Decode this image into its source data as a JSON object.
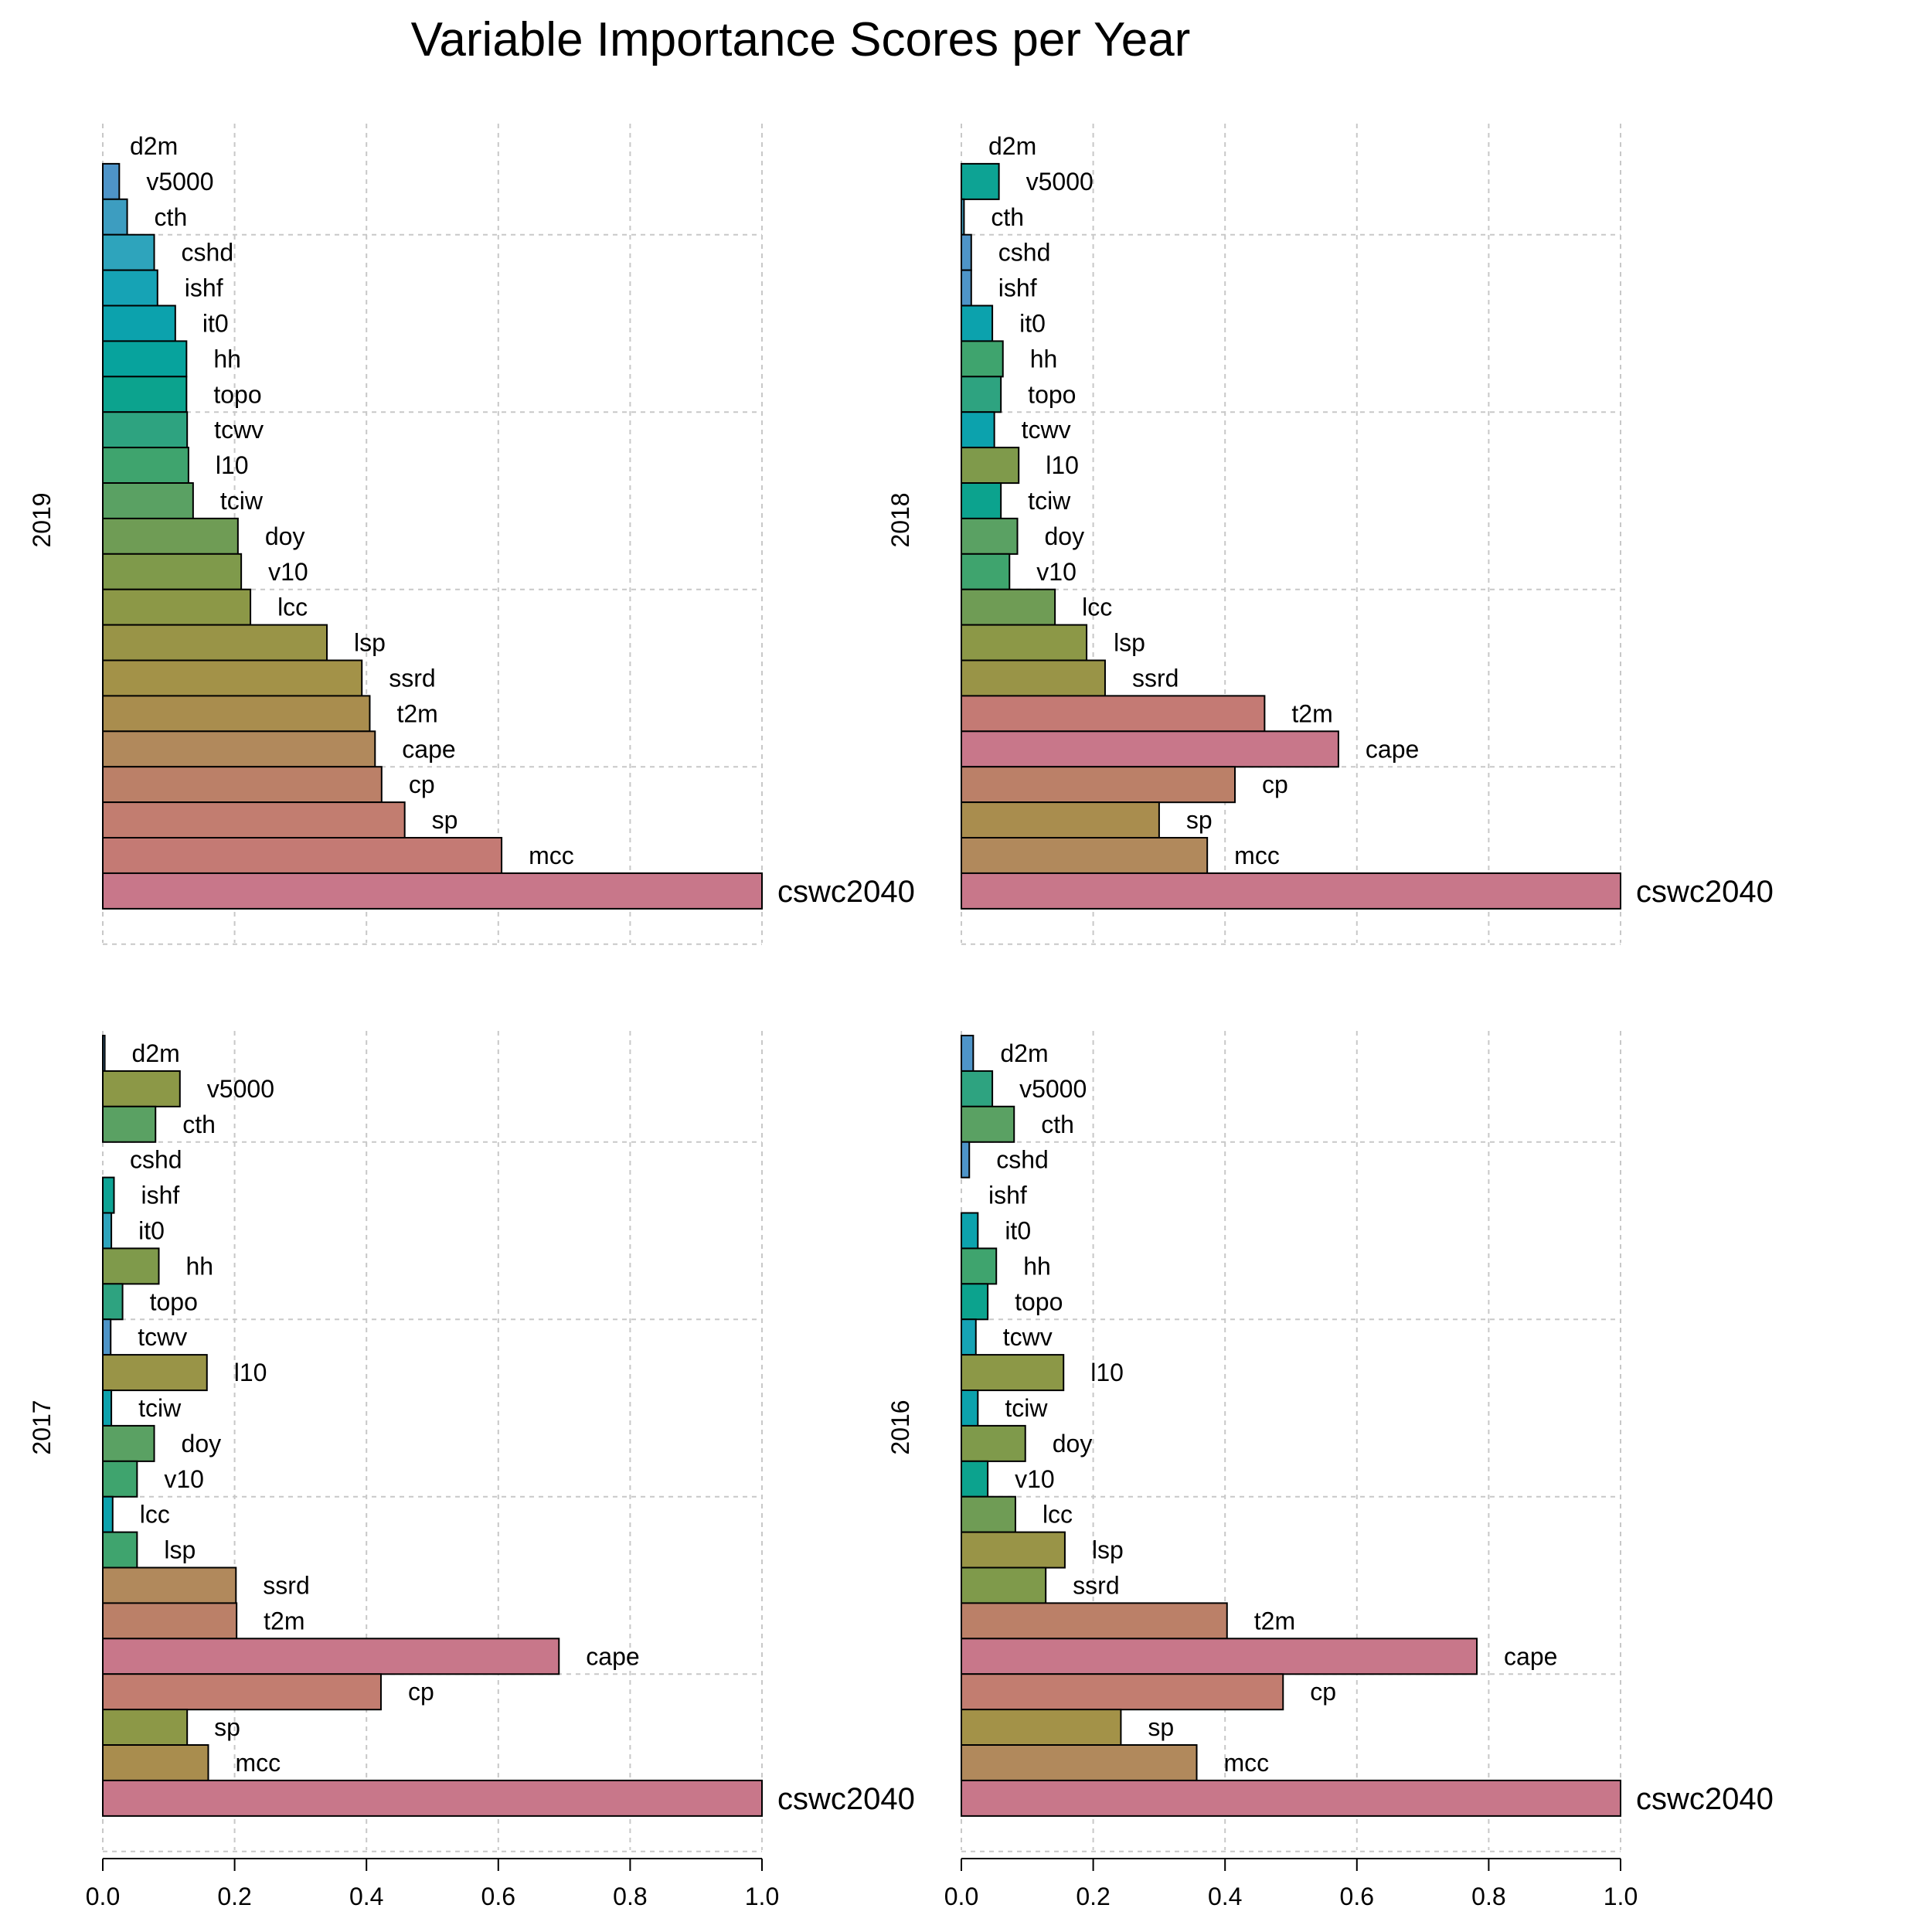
{
  "chart_data": {
    "type": "bar",
    "orientation": "horizontal",
    "title": "Variable Importance Scores per Year",
    "xlim": [
      0,
      1
    ],
    "x_ticks": [
      "0.0",
      "0.2",
      "0.4",
      "0.6",
      "0.8",
      "1.0"
    ],
    "grid": true,
    "categories": [
      "d2m",
      "v5000",
      "cth",
      "cshd",
      "ishf",
      "it0",
      "hh",
      "topo",
      "tcwv",
      "l10",
      "tciw",
      "doy",
      "v10",
      "lcc",
      "lsp",
      "ssrd",
      "t2m",
      "cape",
      "cp",
      "sp",
      "mcc",
      "cswc2040"
    ],
    "panels": [
      {
        "year": "2019",
        "values": [
          0.0,
          0.025,
          0.037,
          0.078,
          0.083,
          0.11,
          0.127,
          0.127,
          0.128,
          0.13,
          0.137,
          0.205,
          0.21,
          0.224,
          0.34,
          0.393,
          0.405,
          0.413,
          0.423,
          0.458,
          0.605,
          1.0
        ],
        "colors": [
          "#4e94c8",
          "#4e94c8",
          "#3d9dc0",
          "#2ea4bc",
          "#16a3b5",
          "#0ca2ad",
          "#07a39d",
          "#0ca38e",
          "#2ea380",
          "#3fa46e",
          "#5aa163",
          "#6f9c55",
          "#7f9a4b",
          "#8c9847",
          "#999447",
          "#a39248",
          "#a98d4e",
          "#b1895c",
          "#bb8068",
          "#c27d70",
          "#c47a74",
          "#c8778a"
        ]
      },
      {
        "year": "2018",
        "values": [
          0.0,
          0.057,
          0.004,
          0.015,
          0.015,
          0.047,
          0.063,
          0.06,
          0.05,
          0.087,
          0.06,
          0.085,
          0.073,
          0.142,
          0.19,
          0.218,
          0.46,
          0.572,
          0.415,
          0.3,
          0.373,
          1.0
        ],
        "colors": [
          "#4e94c8",
          "#0da394",
          "#3d9dc0",
          "#4e94c8",
          "#4e94c8",
          "#0ca2ad",
          "#3fa46e",
          "#2ea380",
          "#0ca2ad",
          "#7f9a4b",
          "#0ca38e",
          "#5aa163",
          "#3fa46e",
          "#6f9c55",
          "#8c9847",
          "#999447",
          "#c47a74",
          "#c8778a",
          "#bb8068",
          "#a98d4e",
          "#b1895c",
          "#c8778a"
        ]
      },
      {
        "year": "2017",
        "values": [
          0.003,
          0.117,
          0.08,
          0.0,
          0.017,
          0.013,
          0.085,
          0.03,
          0.012,
          0.158,
          0.013,
          0.078,
          0.052,
          0.015,
          0.052,
          0.202,
          0.203,
          0.692,
          0.422,
          0.128,
          0.16,
          1.0
        ],
        "colors": [
          "#4e94c8",
          "#8c9847",
          "#5aa163",
          "#4e94c8",
          "#0da394",
          "#2ea4bc",
          "#7f9a4b",
          "#2ea380",
          "#4e94c8",
          "#999447",
          "#0ca2ad",
          "#5aa163",
          "#3fa46e",
          "#0ca2ad",
          "#3fa46e",
          "#b1895c",
          "#bb8068",
          "#c8778a",
          "#c27d70",
          "#8c9847",
          "#a98d4e",
          "#c8778a"
        ]
      },
      {
        "year": "2016",
        "values": [
          0.018,
          0.047,
          0.08,
          0.012,
          0.0,
          0.025,
          0.053,
          0.04,
          0.022,
          0.155,
          0.025,
          0.097,
          0.04,
          0.082,
          0.157,
          0.128,
          0.403,
          0.782,
          0.488,
          0.242,
          0.357,
          1.0
        ],
        "colors": [
          "#4e94c8",
          "#2ea380",
          "#5aa163",
          "#4e94c8",
          "#4e94c8",
          "#0ca2ad",
          "#3fa46e",
          "#0ca38e",
          "#16a3b5",
          "#8c9847",
          "#0ca2ad",
          "#7f9a4b",
          "#0ca38e",
          "#6f9c55",
          "#999447",
          "#7f9a4b",
          "#bb8068",
          "#c8778a",
          "#c27d70",
          "#a39248",
          "#b1895c",
          "#c8778a"
        ]
      }
    ]
  }
}
